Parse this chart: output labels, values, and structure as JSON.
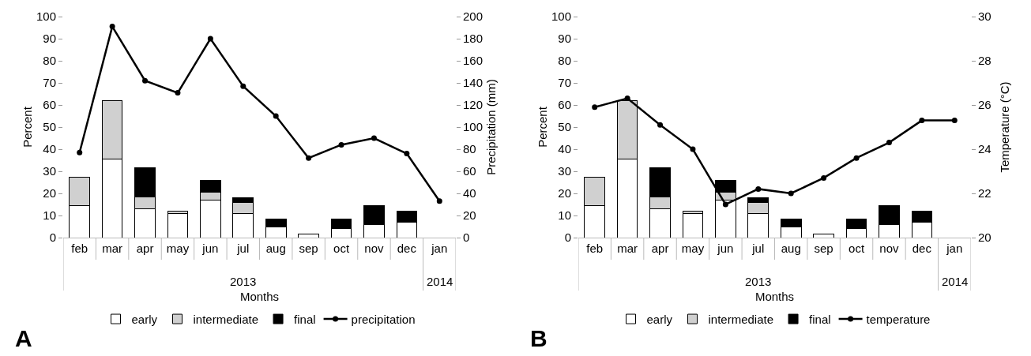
{
  "chart_data": [
    {
      "type": "bar",
      "stacked": true,
      "xlabel": "Months",
      "ylabel": "Percent",
      "y2label": "Precipitation (mm)",
      "categories": [
        "feb",
        "mar",
        "apr",
        "may",
        "jun",
        "jul",
        "aug",
        "sep",
        "oct",
        "nov",
        "dec",
        "jan"
      ],
      "series": [
        {
          "name": "early",
          "color": "#ffffff",
          "values": [
            14.5,
            35.5,
            13,
            11,
            17,
            11,
            5,
            1.5,
            4,
            6,
            7,
            0
          ]
        },
        {
          "name": "intermediate",
          "color": "#d0d0d0",
          "values": [
            13,
            26.5,
            5.5,
            1,
            3.5,
            5,
            0,
            0,
            0,
            0,
            0,
            0
          ]
        },
        {
          "name": "final",
          "color": "#000000",
          "values": [
            0,
            0,
            13,
            0,
            5.5,
            2,
            3.5,
            0,
            4.5,
            8.5,
            5,
            0
          ]
        },
        {
          "name": "precipitation",
          "type": "line",
          "axis": "y2",
          "color": "#000000",
          "marker": "circle",
          "values": [
            77,
            191,
            142,
            131,
            180,
            137,
            110,
            72,
            84,
            90,
            76,
            33
          ]
        }
      ],
      "ylim": [
        0,
        100
      ],
      "yticks": [
        0,
        10,
        20,
        30,
        40,
        50,
        60,
        70,
        80,
        90,
        100
      ],
      "y2lim": [
        0,
        200
      ],
      "y2ticks": [
        0,
        20,
        40,
        60,
        80,
        100,
        120,
        140,
        160,
        180,
        200
      ],
      "grid": false,
      "legend": "bottom",
      "annotations": [
        "2013",
        "2014",
        "A"
      ]
    },
    {
      "type": "bar",
      "stacked": true,
      "xlabel": "Months",
      "ylabel": "Percent",
      "y2label": "Temperature (°C)",
      "categories": [
        "feb",
        "mar",
        "apr",
        "may",
        "jun",
        "jul",
        "aug",
        "sep",
        "oct",
        "nov",
        "dec",
        "jan"
      ],
      "series": [
        {
          "name": "early",
          "color": "#ffffff",
          "values": [
            14.5,
            35.5,
            13,
            11,
            17,
            11,
            5,
            1.5,
            4,
            6,
            7,
            0
          ]
        },
        {
          "name": "intermediate",
          "color": "#d0d0d0",
          "values": [
            13,
            26.5,
            5.5,
            1,
            3.5,
            5,
            0,
            0,
            0,
            0,
            0,
            0
          ]
        },
        {
          "name": "final",
          "color": "#000000",
          "values": [
            0,
            0,
            13,
            0,
            5.5,
            2,
            3.5,
            0,
            4.5,
            8.5,
            5,
            0
          ]
        },
        {
          "name": "temperature",
          "type": "line",
          "axis": "y2",
          "color": "#000000",
          "marker": "circle",
          "values": [
            25.9,
            26.3,
            25.1,
            24.0,
            21.5,
            22.2,
            22.0,
            22.7,
            23.6,
            24.3,
            25.3,
            25.3
          ]
        }
      ],
      "ylim": [
        0,
        100
      ],
      "yticks": [
        0,
        10,
        20,
        30,
        40,
        50,
        60,
        70,
        80,
        90,
        100
      ],
      "y2lim": [
        20,
        30
      ],
      "y2ticks": [
        20,
        22,
        24,
        26,
        28,
        30
      ],
      "grid": false,
      "legend": "bottom",
      "annotations": [
        "2013",
        "2014",
        "B"
      ]
    }
  ]
}
